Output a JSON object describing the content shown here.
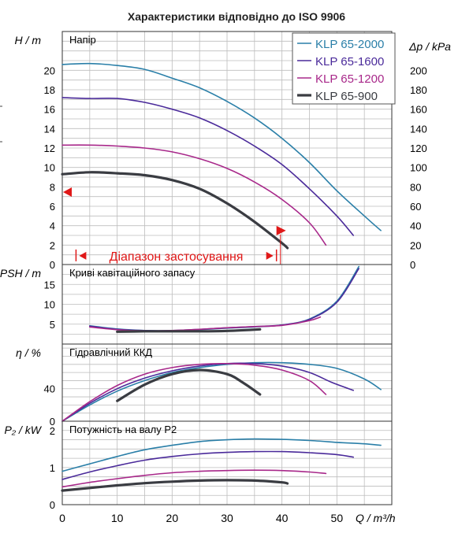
{
  "title": "Характеристики відповідно до ISO 9906",
  "colors": {
    "KLP 65-2000": "#2a7fa8",
    "KLP 65-1600": "#4a2a9a",
    "KLP 65-1200": "#a8288a",
    "KLP 65-900": "#3a3c42",
    "marker": "#e01818",
    "grid": "#bdbdbd"
  },
  "x_axis": {
    "label": "Q / m³/h",
    "ticks": [
      0,
      10,
      20,
      30,
      40,
      50
    ],
    "range": [
      0,
      60
    ]
  },
  "chart_data": [
    {
      "type": "line",
      "panel": "head",
      "title": "Напір",
      "ylabel": "H / m",
      "ylim": [
        0,
        24
      ],
      "yticks": [
        0,
        2,
        4,
        6,
        8,
        10,
        12,
        14,
        16,
        18,
        20
      ],
      "y2label": "Δp / kPa",
      "y2lim": [
        0,
        240
      ],
      "y2ticks": [
        0,
        20,
        40,
        60,
        80,
        100,
        120,
        140,
        160,
        180,
        200
      ],
      "legend": [
        "KLP 65-2000",
        "KLP 65-1600",
        "KLP 65-1200",
        "KLP 65-900"
      ],
      "legend_position": "top-right",
      "annotation": "Діапазон застосування",
      "range_markers": {
        "duty_head_m": 7.3,
        "duty_flow_m3h": 39,
        "range_start_q": 2.5,
        "range_end_q": 39
      },
      "series": [
        {
          "name": "KLP 65-2000",
          "points": [
            [
              0,
              20.6
            ],
            [
              5,
              20.7
            ],
            [
              10,
              20.5
            ],
            [
              15,
              20.1
            ],
            [
              20,
              19.2
            ],
            [
              25,
              18.2
            ],
            [
              30,
              16.8
            ],
            [
              35,
              15.1
            ],
            [
              40,
              13.0
            ],
            [
              45,
              10.5
            ],
            [
              50,
              7.6
            ],
            [
              55,
              5.0
            ],
            [
              58,
              3.5
            ]
          ]
        },
        {
          "name": "KLP 65-1600",
          "points": [
            [
              0,
              17.2
            ],
            [
              5,
              17.1
            ],
            [
              10,
              17.1
            ],
            [
              15,
              16.7
            ],
            [
              20,
              16.0
            ],
            [
              25,
              15.1
            ],
            [
              30,
              13.8
            ],
            [
              35,
              12.2
            ],
            [
              40,
              10.3
            ],
            [
              45,
              7.8
            ],
            [
              50,
              5.0
            ],
            [
              53,
              3.0
            ]
          ]
        },
        {
          "name": "KLP 65-1200",
          "points": [
            [
              0,
              12.3
            ],
            [
              5,
              12.3
            ],
            [
              10,
              12.2
            ],
            [
              15,
              12.0
            ],
            [
              20,
              11.6
            ],
            [
              25,
              10.9
            ],
            [
              30,
              9.9
            ],
            [
              35,
              8.5
            ],
            [
              40,
              6.7
            ],
            [
              45,
              4.3
            ],
            [
              48,
              2.0
            ]
          ]
        },
        {
          "name": "KLP 65-900",
          "points": [
            [
              0,
              9.3
            ],
            [
              5,
              9.5
            ],
            [
              10,
              9.4
            ],
            [
              15,
              9.2
            ],
            [
              20,
              8.7
            ],
            [
              25,
              7.8
            ],
            [
              30,
              6.3
            ],
            [
              35,
              4.4
            ],
            [
              40,
              2.2
            ],
            [
              41,
              1.7
            ]
          ]
        }
      ]
    },
    {
      "type": "line",
      "panel": "npsh",
      "title": "Криві кавітаційного запасу",
      "ylabel": "NPSH / m",
      "ylim": [
        0,
        20
      ],
      "yticks": [
        5,
        10,
        15
      ],
      "series": [
        {
          "name": "KLP 65-2000",
          "points": [
            [
              5,
              4.6
            ],
            [
              10,
              3.8
            ],
            [
              15,
              3.4
            ],
            [
              20,
              3.3
            ],
            [
              25,
              3.6
            ],
            [
              30,
              4.0
            ],
            [
              35,
              4.3
            ],
            [
              40,
              4.8
            ],
            [
              45,
              6.3
            ],
            [
              50,
              10.8
            ],
            [
              54,
              19.5
            ]
          ]
        },
        {
          "name": "KLP 65-1600",
          "points": [
            [
              5,
              4.5
            ],
            [
              10,
              3.7
            ],
            [
              15,
              3.4
            ],
            [
              20,
              3.4
            ],
            [
              25,
              3.7
            ],
            [
              30,
              4.1
            ],
            [
              35,
              4.4
            ],
            [
              40,
              4.8
            ],
            [
              45,
              6.2
            ],
            [
              50,
              10.5
            ],
            [
              54,
              19.0
            ]
          ]
        },
        {
          "name": "KLP 65-1200",
          "points": [
            [
              5,
              4.3
            ],
            [
              10,
              3.6
            ],
            [
              15,
              3.3
            ],
            [
              20,
              3.4
            ],
            [
              25,
              3.7
            ],
            [
              30,
              4.1
            ],
            [
              35,
              4.4
            ],
            [
              40,
              4.7
            ],
            [
              45,
              5.9
            ],
            [
              47,
              6.8
            ]
          ]
        },
        {
          "name": "KLP 65-900",
          "points": [
            [
              10,
              3.1
            ],
            [
              15,
              3.2
            ],
            [
              20,
              3.2
            ],
            [
              25,
              3.2
            ],
            [
              30,
              3.3
            ],
            [
              36,
              3.7
            ]
          ]
        }
      ]
    },
    {
      "type": "line",
      "panel": "efficiency",
      "title": "Гідравлічний ККД",
      "ylabel": "η / %",
      "ylim": [
        0,
        95
      ],
      "yticks": [
        0,
        40
      ],
      "series": [
        {
          "name": "KLP 65-2000",
          "points": [
            [
              0,
              0
            ],
            [
              5,
              20
            ],
            [
              10,
              37
            ],
            [
              15,
              50
            ],
            [
              20,
              60
            ],
            [
              25,
              66
            ],
            [
              30,
              70
            ],
            [
              35,
              72
            ],
            [
              40,
              72
            ],
            [
              45,
              70
            ],
            [
              50,
              65
            ],
            [
              55,
              52
            ],
            [
              58,
              39
            ]
          ]
        },
        {
          "name": "KLP 65-1600",
          "points": [
            [
              0,
              0
            ],
            [
              5,
              22
            ],
            [
              10,
              40
            ],
            [
              15,
              53
            ],
            [
              20,
              62
            ],
            [
              25,
              68
            ],
            [
              30,
              71
            ],
            [
              35,
              71
            ],
            [
              40,
              68
            ],
            [
              45,
              60
            ],
            [
              49,
              48
            ],
            [
              53,
              38
            ]
          ]
        },
        {
          "name": "KLP 65-1200",
          "points": [
            [
              0,
              0
            ],
            [
              5,
              24
            ],
            [
              10,
              44
            ],
            [
              15,
              58
            ],
            [
              20,
              66
            ],
            [
              25,
              70
            ],
            [
              30,
              71
            ],
            [
              35,
              69
            ],
            [
              40,
              63
            ],
            [
              45,
              50
            ],
            [
              48,
              33
            ]
          ]
        },
        {
          "name": "KLP 65-900",
          "points": [
            [
              10,
              25
            ],
            [
              15,
              45
            ],
            [
              20,
              58
            ],
            [
              25,
              63
            ],
            [
              30,
              58
            ],
            [
              33,
              47
            ],
            [
              36,
              33
            ]
          ]
        }
      ]
    },
    {
      "type": "line",
      "panel": "power",
      "title": "Потужність на валу P2",
      "ylabel": "P₂ / kW",
      "ylim": [
        0,
        2.25
      ],
      "yticks": [
        0,
        1,
        2
      ],
      "series": [
        {
          "name": "KLP 65-2000",
          "points": [
            [
              0,
              0.9
            ],
            [
              5,
              1.1
            ],
            [
              10,
              1.3
            ],
            [
              15,
              1.48
            ],
            [
              20,
              1.6
            ],
            [
              25,
              1.7
            ],
            [
              30,
              1.75
            ],
            [
              35,
              1.77
            ],
            [
              40,
              1.76
            ],
            [
              45,
              1.73
            ],
            [
              50,
              1.68
            ],
            [
              55,
              1.64
            ],
            [
              58,
              1.6
            ]
          ]
        },
        {
          "name": "KLP 65-1600",
          "points": [
            [
              0,
              0.68
            ],
            [
              5,
              0.88
            ],
            [
              10,
              1.05
            ],
            [
              15,
              1.2
            ],
            [
              20,
              1.3
            ],
            [
              25,
              1.37
            ],
            [
              30,
              1.41
            ],
            [
              35,
              1.43
            ],
            [
              40,
              1.43
            ],
            [
              45,
              1.4
            ],
            [
              50,
              1.35
            ],
            [
              53,
              1.28
            ]
          ]
        },
        {
          "name": "KLP 65-1200",
          "points": [
            [
              0,
              0.48
            ],
            [
              5,
              0.6
            ],
            [
              10,
              0.7
            ],
            [
              15,
              0.79
            ],
            [
              20,
              0.86
            ],
            [
              25,
              0.9
            ],
            [
              30,
              0.92
            ],
            [
              35,
              0.93
            ],
            [
              40,
              0.92
            ],
            [
              45,
              0.88
            ],
            [
              48,
              0.84
            ]
          ]
        },
        {
          "name": "KLP 65-900",
          "points": [
            [
              0,
              0.38
            ],
            [
              5,
              0.45
            ],
            [
              10,
              0.52
            ],
            [
              15,
              0.58
            ],
            [
              20,
              0.62
            ],
            [
              25,
              0.65
            ],
            [
              30,
              0.66
            ],
            [
              35,
              0.65
            ],
            [
              40,
              0.6
            ],
            [
              41,
              0.57
            ]
          ]
        }
      ]
    }
  ]
}
